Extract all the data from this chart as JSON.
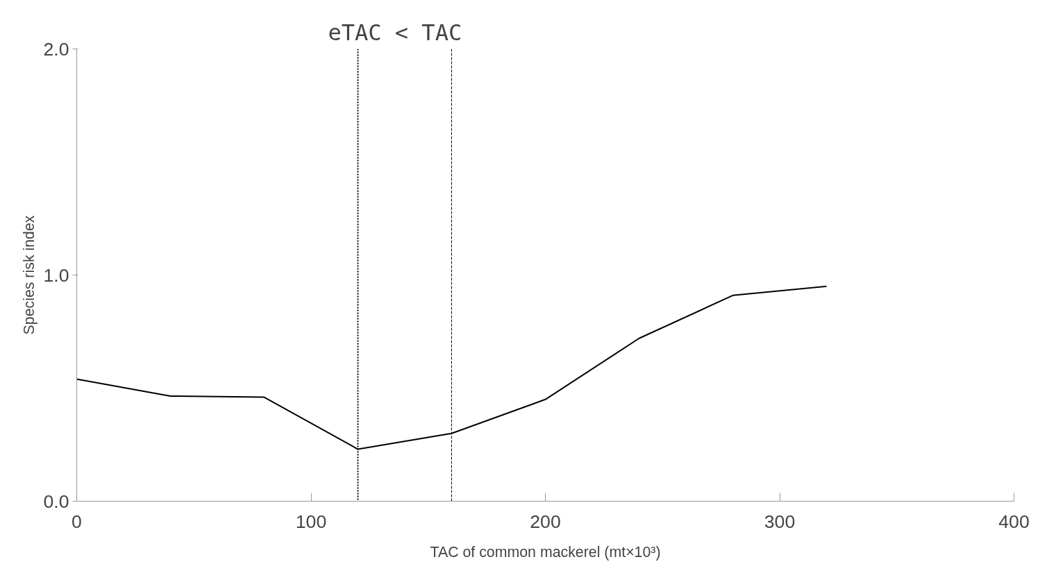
{
  "chart_data": {
    "type": "line",
    "xlabel": "TAC of common mackerel (mt×10³)",
    "ylabel": "Species risk index",
    "x": [
      0,
      40,
      80,
      120,
      160,
      200,
      240,
      280,
      320
    ],
    "series": [
      {
        "color": "#000000",
        "values": [
          0.54,
          0.465,
          0.46,
          0.23,
          0.3,
          0.45,
          0.72,
          0.91,
          0.95
        ]
      }
    ],
    "xlim": [
      0,
      400
    ],
    "xticks": [
      0,
      100,
      200,
      300,
      400
    ],
    "ylim": [
      0,
      2
    ],
    "yticks": [
      {
        "value": 0,
        "label": "0.0"
      },
      {
        "value": 1,
        "label": "1.0"
      },
      {
        "value": 2,
        "label": "2.0"
      }
    ],
    "ref_lines": [
      {
        "axis": "x",
        "value": 120,
        "line_style": "dotted",
        "color": "#000000"
      },
      {
        "axis": "x",
        "value": 160,
        "line_style": "dashed",
        "color": "#000000"
      }
    ],
    "annotations": [
      "eTAC < TAC"
    ],
    "grid": false,
    "marker": "none",
    "line_style": "solid"
  }
}
